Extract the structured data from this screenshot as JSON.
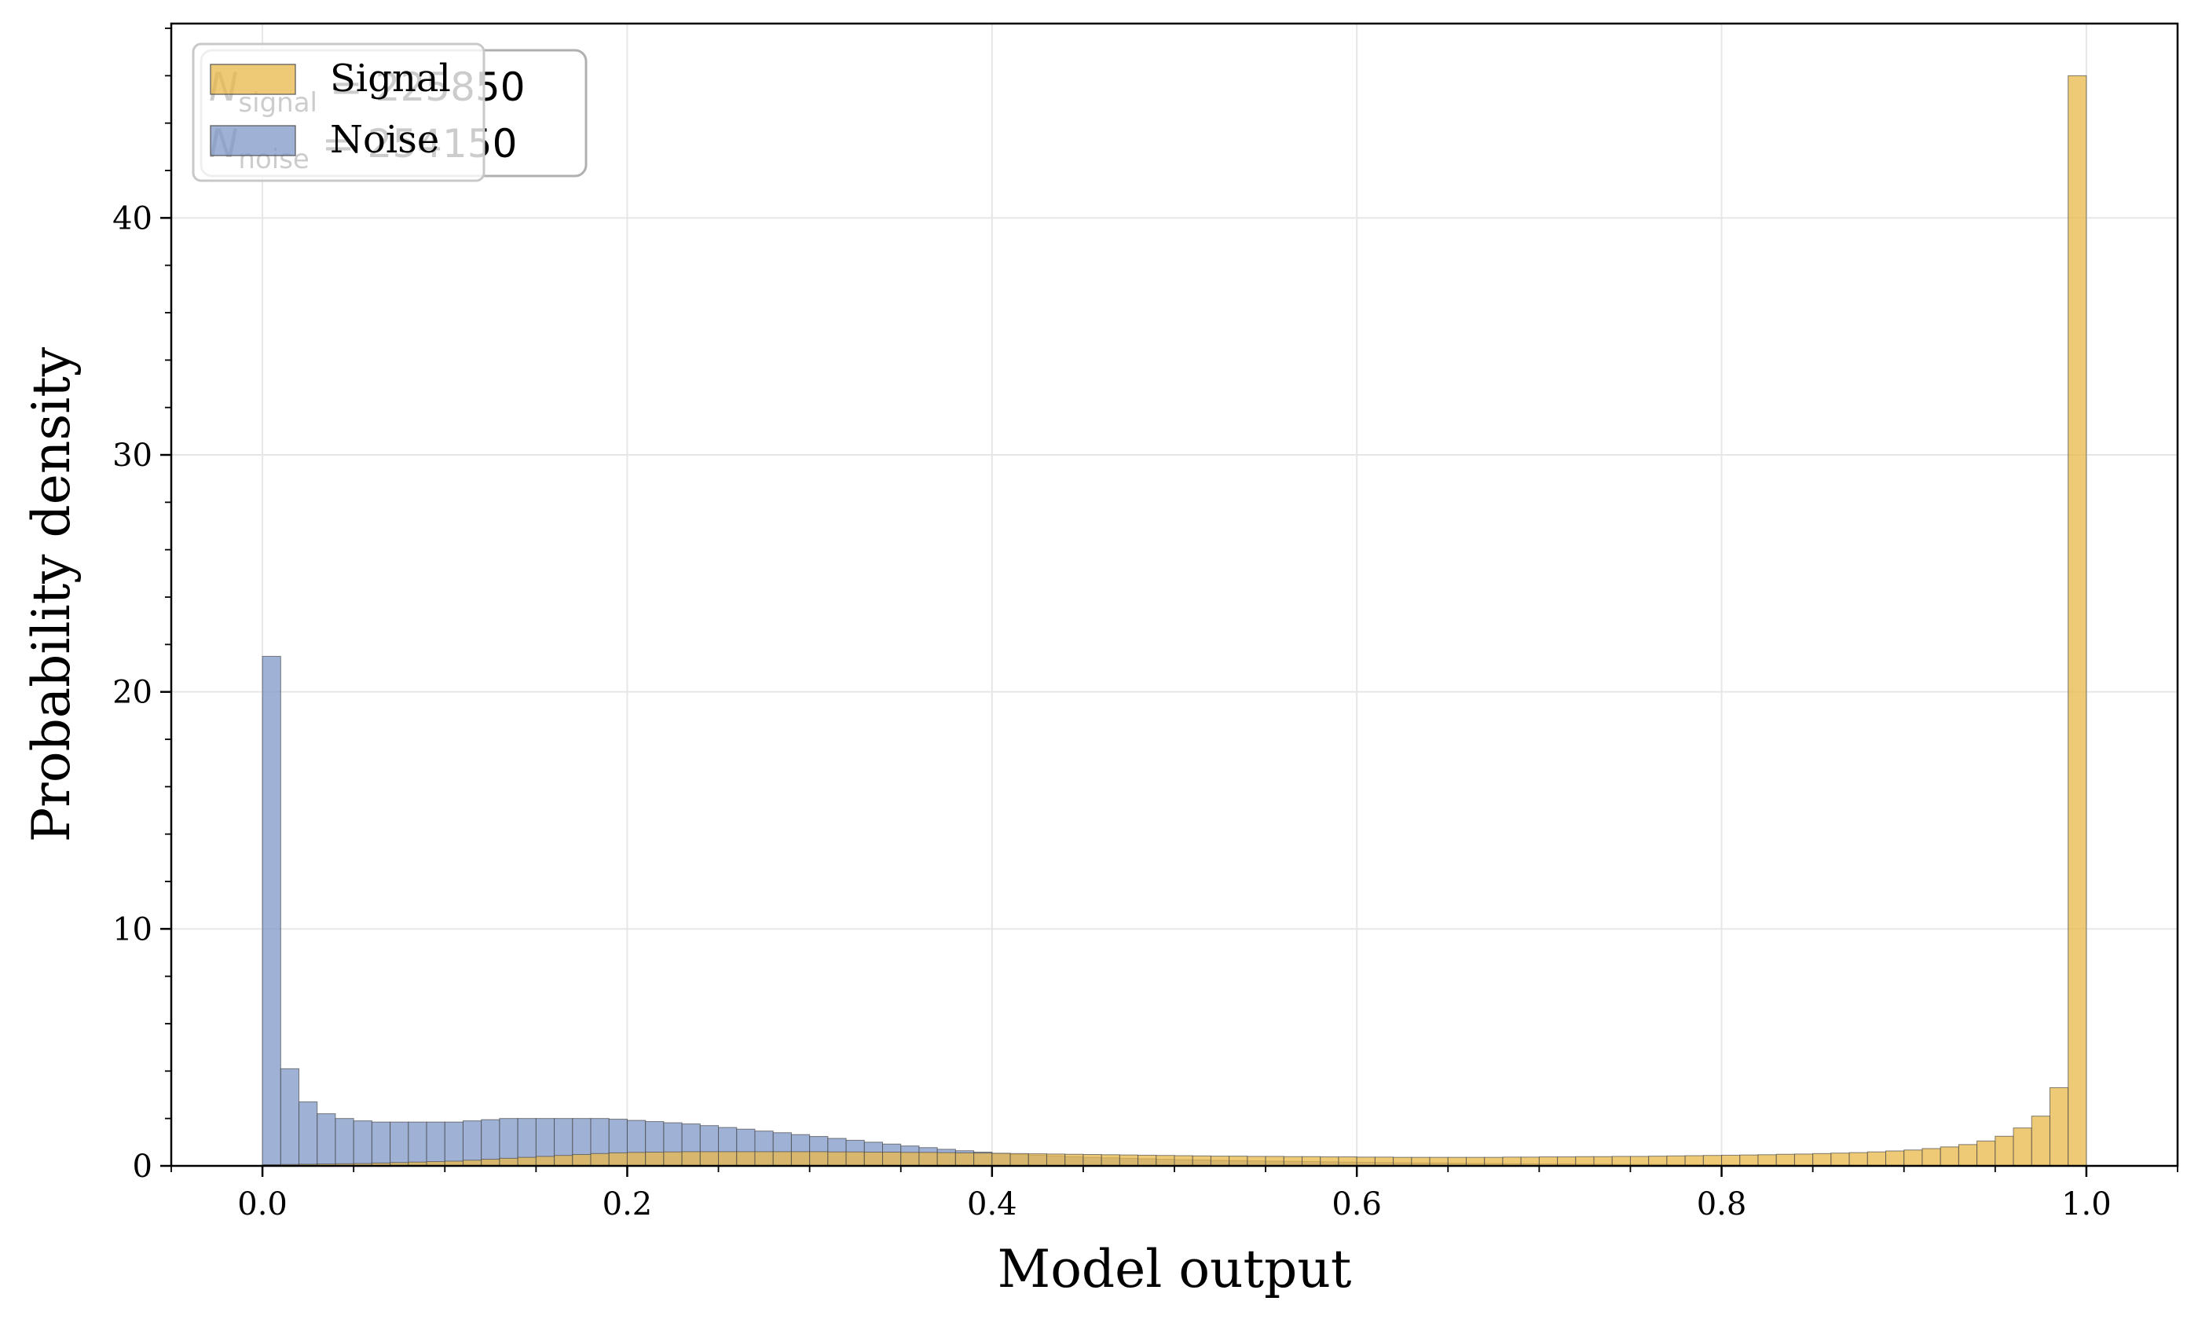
{
  "chart_data": {
    "type": "bar",
    "xlabel": "Model output",
    "ylabel": "Probability density",
    "xlim": [
      -0.05,
      1.05
    ],
    "ylim": [
      0,
      48.2
    ],
    "x_ticks": [
      0.0,
      0.2,
      0.4,
      0.6,
      0.8,
      1.0
    ],
    "x_tick_labels": [
      "0.0",
      "0.2",
      "0.4",
      "0.6",
      "0.8",
      "1.0"
    ],
    "y_ticks": [
      0,
      10,
      20,
      30,
      40
    ],
    "y_tick_labels": [
      "0",
      "10",
      "20",
      "30",
      "40"
    ],
    "grid": true,
    "legend_position": "top-left",
    "bin_width": 0.01,
    "annotation": {
      "signal": {
        "symbol": "N",
        "subscript": "signal",
        "text": " = 225850"
      },
      "noise": {
        "symbol": "N",
        "subscript": "noise",
        "text": " = 254150"
      }
    },
    "series": [
      {
        "name": "Signal",
        "color": "#E8B84A",
        "values": [
          0.05,
          0.06,
          0.07,
          0.08,
          0.09,
          0.1,
          0.12,
          0.14,
          0.16,
          0.18,
          0.2,
          0.24,
          0.28,
          0.32,
          0.36,
          0.4,
          0.44,
          0.48,
          0.52,
          0.55,
          0.57,
          0.58,
          0.59,
          0.6,
          0.6,
          0.6,
          0.6,
          0.6,
          0.6,
          0.6,
          0.6,
          0.59,
          0.59,
          0.58,
          0.58,
          0.57,
          0.57,
          0.56,
          0.55,
          0.54,
          0.53,
          0.52,
          0.51,
          0.5,
          0.49,
          0.48,
          0.47,
          0.46,
          0.45,
          0.44,
          0.43,
          0.42,
          0.41,
          0.41,
          0.4,
          0.4,
          0.39,
          0.39,
          0.38,
          0.38,
          0.37,
          0.37,
          0.36,
          0.36,
          0.36,
          0.36,
          0.36,
          0.36,
          0.37,
          0.37,
          0.38,
          0.38,
          0.39,
          0.39,
          0.4,
          0.4,
          0.41,
          0.42,
          0.43,
          0.44,
          0.45,
          0.46,
          0.47,
          0.49,
          0.5,
          0.52,
          0.54,
          0.56,
          0.59,
          0.63,
          0.67,
          0.73,
          0.8,
          0.9,
          1.05,
          1.25,
          1.6,
          2.1,
          3.3,
          46.0
        ]
      },
      {
        "name": "Noise",
        "color": "#7F98C8",
        "values": [
          21.5,
          4.1,
          2.7,
          2.2,
          2.0,
          1.9,
          1.85,
          1.85,
          1.85,
          1.85,
          1.85,
          1.9,
          1.95,
          2.0,
          2.0,
          2.0,
          2.0,
          2.0,
          2.0,
          1.97,
          1.92,
          1.87,
          1.82,
          1.77,
          1.7,
          1.62,
          1.55,
          1.47,
          1.4,
          1.32,
          1.24,
          1.16,
          1.08,
          1.0,
          0.92,
          0.84,
          0.77,
          0.7,
          0.64,
          0.58,
          0.53,
          0.49,
          0.45,
          0.42,
          0.39,
          0.36,
          0.34,
          0.32,
          0.3,
          0.28,
          0.26,
          0.25,
          0.23,
          0.22,
          0.21,
          0.2,
          0.19,
          0.18,
          0.17,
          0.16,
          0.15,
          0.14,
          0.13,
          0.12,
          0.12,
          0.11,
          0.1,
          0.1,
          0.09,
          0.09,
          0.08,
          0.08,
          0.07,
          0.07,
          0.06,
          0.06,
          0.06,
          0.05,
          0.05,
          0.05,
          0.04,
          0.04,
          0.04,
          0.04,
          0.03,
          0.03,
          0.03,
          0.03,
          0.03,
          0.03,
          0.02,
          0.02,
          0.02,
          0.02,
          0.02,
          0.02,
          0.02,
          0.02,
          0.02,
          0.02
        ]
      }
    ]
  }
}
